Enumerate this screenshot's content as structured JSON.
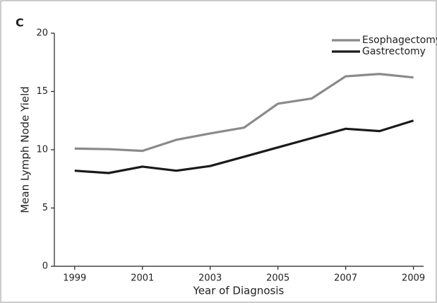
{
  "chart_data": {
    "type": "line",
    "panel_label": "C",
    "xlabel": "Year of Diagnosis",
    "ylabel": "Mean Lymph Node Yield",
    "x": [
      1999,
      2000,
      2001,
      2002,
      2003,
      2004,
      2005,
      2006,
      2007,
      2008,
      2009
    ],
    "series": [
      {
        "name": "Esophagectomy",
        "color": "#8a8a8a",
        "values": [
          10.1,
          10.05,
          9.9,
          10.85,
          11.4,
          11.9,
          13.95,
          14.4,
          16.3,
          16.5,
          16.2
        ]
      },
      {
        "name": "Gastrectomy",
        "color": "#1a1a1a",
        "values": [
          8.2,
          8.0,
          8.55,
          8.2,
          8.6,
          9.4,
          10.2,
          11.0,
          11.8,
          11.6,
          12.5
        ]
      }
    ],
    "xlim": [
      1998.4,
      2009.3
    ],
    "xticks": [
      1999,
      2001,
      2003,
      2005,
      2007,
      2009
    ],
    "ylim": [
      0,
      20
    ],
    "yticks": [
      0,
      5,
      10,
      15,
      20
    ],
    "grid": false,
    "legend": "upper right"
  }
}
